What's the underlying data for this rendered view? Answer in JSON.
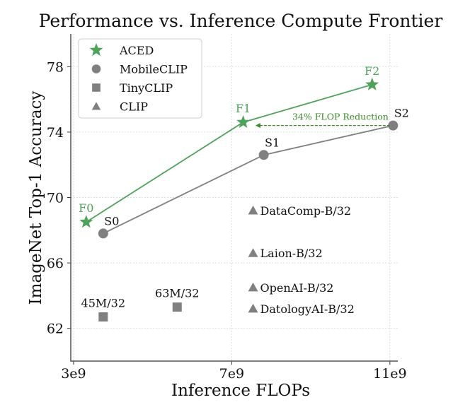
{
  "chart_data": {
    "type": "scatter",
    "title": "Performance vs. Inference Compute Frontier",
    "xlabel": "Inference FLOPs",
    "ylabel": "ImageNet Top-1 Accuracy",
    "xlim": [
      2930000000.0,
      11200000000.0
    ],
    "ylim": [
      60,
      80
    ],
    "xticks": [
      {
        "v": 3000000000.0,
        "label": "3e9"
      },
      {
        "v": 7000000000.0,
        "label": "7e9"
      },
      {
        "v": 11000000000.0,
        "label": "11e9"
      }
    ],
    "yticks": [
      {
        "v": 62,
        "label": "62"
      },
      {
        "v": 66,
        "label": "66"
      },
      {
        "v": 70,
        "label": "70"
      },
      {
        "v": 74,
        "label": "74"
      },
      {
        "v": 78,
        "label": "78"
      }
    ],
    "grid": true,
    "legend_position": "top-left",
    "series": [
      {
        "name": "ACED",
        "marker": "star",
        "color": "#4ea35a",
        "line": true,
        "points": [
          {
            "x": 3320000000.0,
            "y": 68.5,
            "label": "F0"
          },
          {
            "x": 7290000000.0,
            "y": 74.6,
            "label": "F1"
          },
          {
            "x": 10550000000.0,
            "y": 76.9,
            "label": "F2"
          }
        ]
      },
      {
        "name": "MobileCLIP",
        "marker": "circle",
        "color": "#808080",
        "line": true,
        "points": [
          {
            "x": 3750000000.0,
            "y": 67.8,
            "label": "S0"
          },
          {
            "x": 7810000000.0,
            "y": 72.6,
            "label": "S1"
          },
          {
            "x": 11080000000.0,
            "y": 74.4,
            "label": "S2"
          }
        ]
      },
      {
        "name": "TinyCLIP",
        "marker": "square",
        "color": "#808080",
        "line": false,
        "points": [
          {
            "x": 3750000000.0,
            "y": 62.7,
            "label": "45M/32"
          },
          {
            "x": 5620000000.0,
            "y": 63.3,
            "label": "63M/32"
          }
        ]
      },
      {
        "name": "CLIP",
        "marker": "triangle",
        "color": "#808080",
        "line": false,
        "points": [
          {
            "x": 7540000000.0,
            "y": 69.2,
            "label": "DataComp-B/32"
          },
          {
            "x": 7540000000.0,
            "y": 66.6,
            "label": "Laion-B/32"
          },
          {
            "x": 7540000000.0,
            "y": 64.5,
            "label": "OpenAI-B/32"
          },
          {
            "x": 7540000000.0,
            "y": 63.2,
            "label": "DatologyAI-B/32"
          }
        ]
      }
    ],
    "annotation": {
      "text": "34% FLOP Reduction",
      "from": {
        "x": 11000000000.0,
        "y": 74.4
      },
      "to": {
        "x": 7600000000.0,
        "y": 74.4
      },
      "color": "#3a8a2a"
    }
  }
}
